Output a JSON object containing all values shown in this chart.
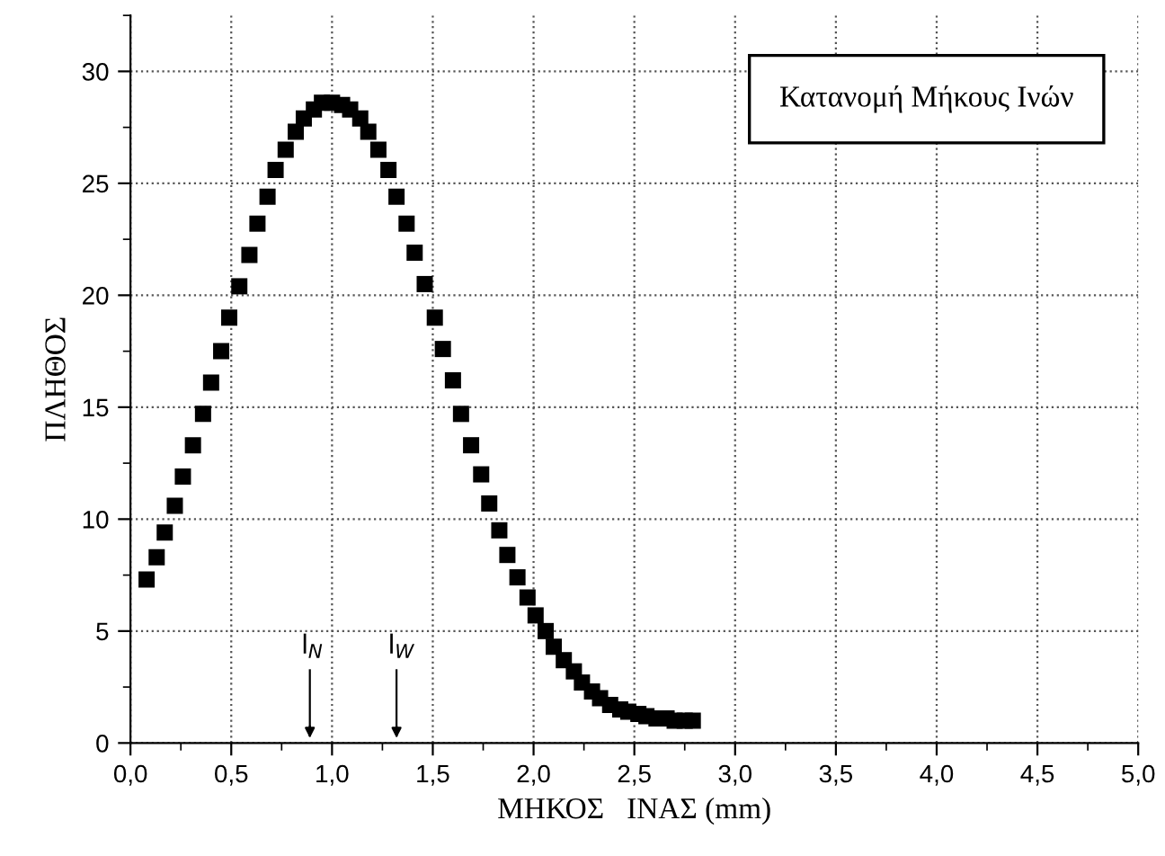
{
  "chart_data": {
    "type": "scatter",
    "xlabel": "ΜΗΚΟΣ   ΙΝΑΣ (mm)",
    "ylabel": "ΠΛΗΘΟΣ",
    "x": [
      0.08,
      0.13,
      0.17,
      0.22,
      0.26,
      0.31,
      0.36,
      0.4,
      0.45,
      0.49,
      0.54,
      0.59,
      0.63,
      0.68,
      0.72,
      0.77,
      0.82,
      0.86,
      0.91,
      0.95,
      1.0,
      1.05,
      1.09,
      1.14,
      1.18,
      1.23,
      1.28,
      1.32,
      1.37,
      1.41,
      1.46,
      1.51,
      1.55,
      1.6,
      1.64,
      1.69,
      1.74,
      1.78,
      1.83,
      1.87,
      1.92,
      1.97,
      2.01,
      2.06,
      2.1,
      2.15,
      2.2,
      2.24,
      2.29,
      2.33,
      2.38,
      2.43,
      2.47,
      2.52,
      2.56,
      2.61,
      2.66,
      2.7,
      2.75,
      2.79
    ],
    "series": [
      {
        "color": "#000000",
        "values": [
          7.3,
          8.3,
          9.4,
          10.6,
          11.9,
          13.3,
          14.7,
          16.1,
          17.5,
          19.0,
          20.4,
          21.8,
          23.2,
          24.4,
          25.6,
          26.5,
          27.3,
          27.9,
          28.3,
          28.6,
          28.6,
          28.5,
          28.3,
          27.9,
          27.3,
          26.5,
          25.6,
          24.4,
          23.2,
          21.9,
          20.5,
          19.0,
          17.6,
          16.2,
          14.7,
          13.3,
          12.0,
          10.7,
          9.5,
          8.4,
          7.4,
          6.5,
          5.7,
          5.0,
          4.3,
          3.7,
          3.2,
          2.7,
          2.3,
          2.0,
          1.7,
          1.5,
          1.4,
          1.3,
          1.2,
          1.1,
          1.1,
          1.0,
          1.0,
          1.0
        ]
      }
    ],
    "marker": "square",
    "grid": true,
    "legend": false,
    "xlim": [
      0,
      5
    ],
    "ylim": [
      0,
      32.5
    ],
    "xticks": [
      {
        "value": 0,
        "label": "0,0"
      },
      {
        "value": 0.5,
        "label": "0,5"
      },
      {
        "value": 1,
        "label": "1,0"
      },
      {
        "value": 1.5,
        "label": "1,5"
      },
      {
        "value": 2,
        "label": "2,0"
      },
      {
        "value": 2.5,
        "label": "2,5"
      },
      {
        "value": 3,
        "label": "3,0"
      },
      {
        "value": 3.5,
        "label": "3,5"
      },
      {
        "value": 4,
        "label": "4,0"
      },
      {
        "value": 4.5,
        "label": "4,5"
      },
      {
        "value": 5,
        "label": "5,0"
      }
    ],
    "yticks": [
      0,
      5,
      10,
      15,
      20,
      25,
      30
    ],
    "annotations": [
      "Κατανομή Μήκους Ινών"
    ],
    "ref_lines": [
      {
        "axis": "x",
        "value": 0.89,
        "label": "l$_{N}$"
      },
      {
        "axis": "x",
        "value": 1.32,
        "label": "l$_{W}$"
      }
    ]
  }
}
